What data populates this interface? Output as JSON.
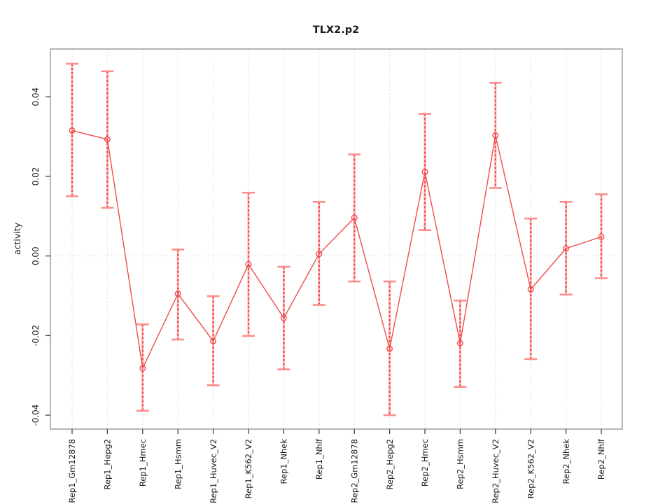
{
  "chart_data": {
    "type": "line",
    "title": "TLX2.p2",
    "xlabel": "",
    "ylabel": "activity",
    "ylim": [
      -0.0435,
      0.052
    ],
    "yticks": [
      {
        "v": -0.04,
        "label": "-0.04"
      },
      {
        "v": -0.02,
        "label": "-0.02"
      },
      {
        "v": 0.0,
        "label": "0.00"
      },
      {
        "v": 0.02,
        "label": "0.02"
      },
      {
        "v": 0.04,
        "label": "0.04"
      }
    ],
    "grid": {
      "vertical_per_category": true,
      "hline_at_zero": true,
      "style": "dotted"
    },
    "legend": "none",
    "marker": "open-circle",
    "series_name": "activity",
    "points": [
      {
        "category": "Rep1_Gm12878",
        "value": 0.0315,
        "lower": 0.015,
        "upper": 0.0483
      },
      {
        "category": "Rep1_Hepg2",
        "value": 0.0293,
        "lower": 0.0121,
        "upper": 0.0464
      },
      {
        "category": "Rep1_Hmec",
        "value": -0.0282,
        "lower": -0.0389,
        "upper": -0.0172
      },
      {
        "category": "Rep1_Hsmm",
        "value": -0.0095,
        "lower": -0.021,
        "upper": 0.0016
      },
      {
        "category": "Rep1_Huvec_V2",
        "value": -0.0214,
        "lower": -0.0325,
        "upper": -0.0101
      },
      {
        "category": "Rep1_K562_V2",
        "value": -0.0021,
        "lower": -0.0201,
        "upper": 0.0159
      },
      {
        "category": "Rep1_Nhek",
        "value": -0.0156,
        "lower": -0.0285,
        "upper": -0.0027
      },
      {
        "category": "Rep1_Nhlf",
        "value": 0.0005,
        "lower": -0.0123,
        "upper": 0.0136
      },
      {
        "category": "Rep2_Gm12878",
        "value": 0.0096,
        "lower": -0.0064,
        "upper": 0.0255
      },
      {
        "category": "Rep2_Hepg2",
        "value": -0.0233,
        "lower": -0.04,
        "upper": -0.0064
      },
      {
        "category": "Rep2_Hmec",
        "value": 0.0211,
        "lower": 0.0065,
        "upper": 0.0357
      },
      {
        "category": "Rep2_Hsmm",
        "value": -0.0219,
        "lower": -0.0329,
        "upper": -0.0112
      },
      {
        "category": "Rep2_Huvec_V2",
        "value": 0.0303,
        "lower": 0.0171,
        "upper": 0.0435
      },
      {
        "category": "Rep2_K562_V2",
        "value": -0.0084,
        "lower": -0.0259,
        "upper": 0.0094
      },
      {
        "category": "Rep2_Nhek",
        "value": 0.0019,
        "lower": -0.0097,
        "upper": 0.0136
      },
      {
        "category": "Rep2_Nhlf",
        "value": 0.0048,
        "lower": -0.0056,
        "upper": 0.0155
      }
    ],
    "colors": {
      "line": "#f04b4b",
      "errorbar_band": "#ffb1b1",
      "errorbar_dash": "#f34c4c",
      "errorbar_cap": "#fc8d8d",
      "grid": "#d6d6d6",
      "frame": "#8d8d8d",
      "tick": "#454545",
      "text": "#1c1c1c"
    }
  }
}
